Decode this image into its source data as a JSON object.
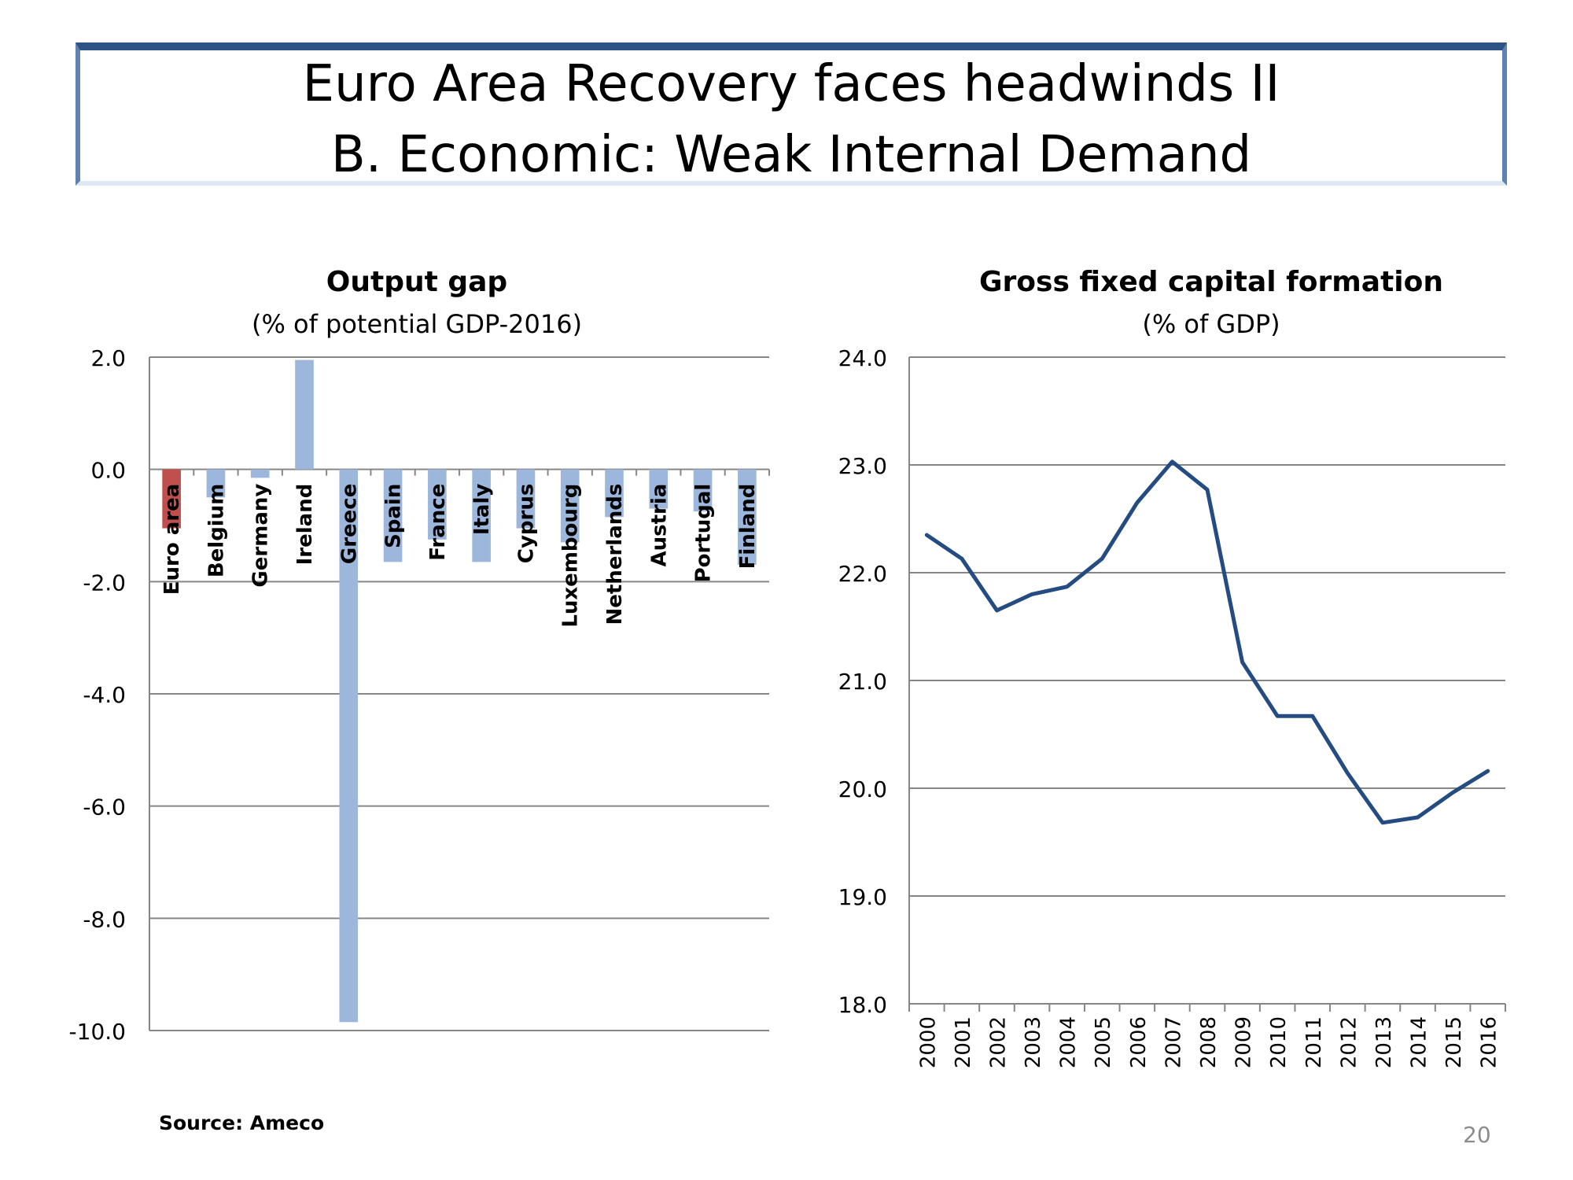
{
  "slide": {
    "title_line1": "Euro Area Recovery faces headwinds II",
    "title_line2": "B. Economic: Weak Internal Demand",
    "source": "Source: Ameco",
    "page_number": "20",
    "title_border_color": "#2e5485"
  },
  "chart_data": [
    {
      "type": "bar",
      "title": "Output gap",
      "subtitle": "(% of potential GDP-2016)",
      "categories": [
        "Euro area",
        "Belgium",
        "Germany",
        "Ireland",
        "Greece",
        "Spain",
        "France",
        "Italy",
        "Cyprus",
        "Luxembourg",
        "Netherlands",
        "Austria",
        "Portugal",
        "Finland"
      ],
      "values": [
        -1.05,
        -0.5,
        -0.15,
        1.95,
        -9.85,
        -1.65,
        -1.25,
        -1.65,
        -1.05,
        -1.3,
        -0.85,
        -0.7,
        -0.75,
        -1.7
      ],
      "highlight_index": 0,
      "colors": {
        "bar": "#9db7dc",
        "highlight": "#c0504d",
        "grid": "#868686"
      },
      "ylim": [
        -10,
        2
      ],
      "yticks": [
        2,
        0,
        -2,
        -4,
        -6,
        -8,
        -10
      ],
      "ytick_labels": [
        "2.0",
        "0.0",
        "-2.0",
        "-4.0",
        "-6.0",
        "-8.0",
        "-10.0"
      ],
      "grid": true,
      "legend": "none"
    },
    {
      "type": "line",
      "title": "Gross fixed capital formation",
      "subtitle": "(% of GDP)",
      "x": [
        "2000",
        "2001",
        "2002",
        "2003",
        "2004",
        "2005",
        "2006",
        "2007",
        "2008",
        "2009",
        "2010",
        "2011",
        "2012",
        "2013",
        "2014",
        "2015",
        "2016"
      ],
      "values": [
        22.35,
        22.13,
        21.65,
        21.8,
        21.87,
        22.13,
        22.65,
        23.03,
        22.77,
        21.17,
        20.67,
        20.67,
        20.14,
        19.68,
        19.73,
        19.96,
        20.16
      ],
      "colors": {
        "line": "#254c82",
        "grid": "#868686"
      },
      "ylim": [
        18,
        24
      ],
      "yticks": [
        24,
        23,
        22,
        21,
        20,
        19,
        18
      ],
      "ytick_labels": [
        "24.0",
        "23.0",
        "22.0",
        "21.0",
        "20.0",
        "19.0",
        "18.0"
      ],
      "grid": true,
      "legend": "none"
    }
  ]
}
